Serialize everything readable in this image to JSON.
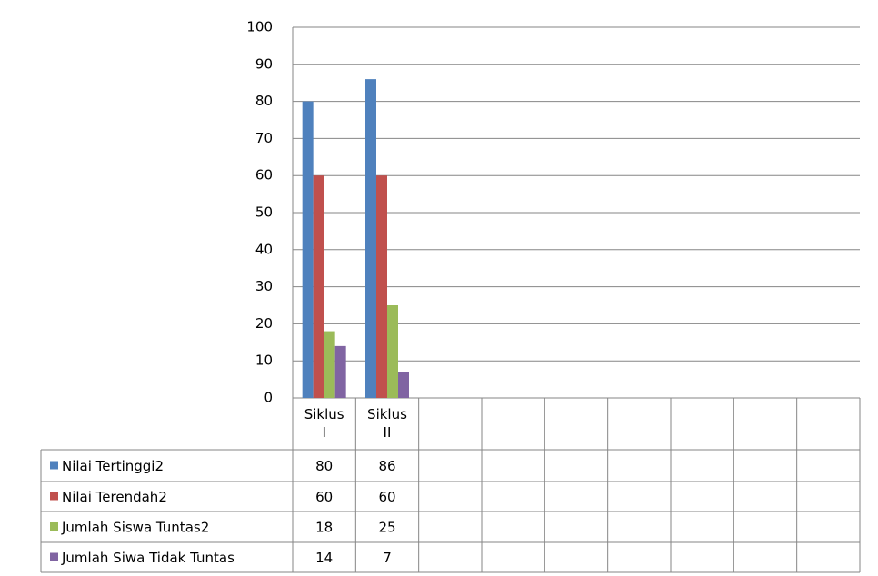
{
  "chart_data": {
    "type": "bar",
    "categories": [
      "Siklus I",
      "Siklus II",
      null,
      null,
      null,
      null,
      null,
      null,
      null
    ],
    "series": [
      {
        "name": "Nilai Tertinggi2",
        "color": "#4f81bd",
        "values": [
          80,
          86,
          null,
          null,
          null,
          null,
          null,
          null,
          null
        ]
      },
      {
        "name": "Nilai Terendah2",
        "color": "#c0504d",
        "values": [
          60,
          60,
          null,
          null,
          null,
          null,
          null,
          null,
          null
        ]
      },
      {
        "name": "Jumlah Siswa Tuntas2",
        "color": "#9bbb59",
        "values": [
          18,
          25,
          null,
          null,
          null,
          null,
          null,
          null,
          null
        ]
      },
      {
        "name": "Jumlah Siwa Tidak Tuntas",
        "color": "#8064a2",
        "values": [
          14,
          7,
          null,
          null,
          null,
          null,
          null,
          null,
          null
        ]
      }
    ],
    "ylim": [
      0,
      100
    ],
    "yticks": [
      0,
      10,
      20,
      30,
      40,
      50,
      60,
      70,
      80,
      90,
      100
    ],
    "grid": true
  }
}
